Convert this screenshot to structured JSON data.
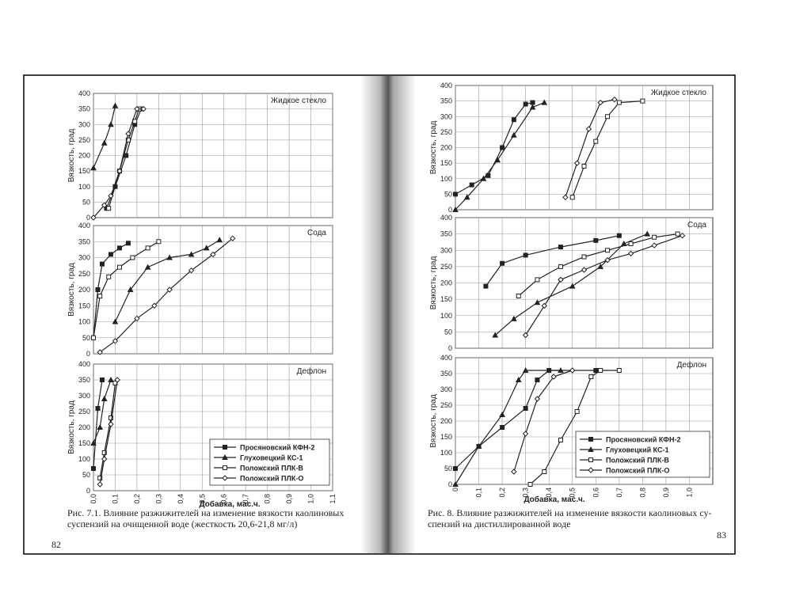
{
  "pages": [
    {
      "number": "82",
      "caption": [
        "Рис. 7.1. Влияние разжижителей на изменение вязкости каолиновых",
        "суспензий на очищенной воде (жесткость 20,6-21,8 мг/л)"
      ],
      "xlabel": "Добавка, мас.ч.",
      "xlim": [
        0,
        1.1
      ],
      "xticks": [
        {
          "value": 0,
          "label": "0,0"
        },
        {
          "value": 0.1,
          "label": "0,1"
        },
        {
          "value": 0.2,
          "label": "0,2"
        },
        {
          "value": 0.3,
          "label": "0,3"
        },
        {
          "value": 0.4,
          "label": "0,4"
        },
        {
          "value": 0.5,
          "label": "0,5"
        },
        {
          "value": 0.6,
          "label": "0,6"
        },
        {
          "value": 0.7,
          "label": "0,7"
        },
        {
          "value": 0.8,
          "label": "0,8"
        },
        {
          "value": 0.9,
          "label": "0,9"
        },
        {
          "value": 1.0,
          "label": "1,0"
        },
        {
          "value": 1.1,
          "label": "1,1"
        }
      ],
      "legend": [
        "Просяновский КФН-2",
        "Глуховецкий КС-1",
        "Положский ПЛК-В",
        "Положский ПЛК-О"
      ],
      "panels": [
        {
          "title": "Жидкое стекло",
          "ylabel": "Вязкость, град",
          "ylim": [
            0,
            400
          ],
          "yticks": [
            0,
            50,
            100,
            150,
            200,
            250,
            300,
            350,
            400
          ],
          "series": [
            {
              "x": [
                0.06,
                0.1,
                0.15,
                0.19,
                0.22
              ],
              "values": [
                30,
                100,
                200,
                300,
                350
              ]
            },
            {
              "x": [
                0,
                0.05,
                0.08,
                0.1
              ],
              "values": [
                160,
                240,
                300,
                360
              ]
            },
            {
              "x": [
                0.07,
                0.12,
                0.16,
                0.19,
                0.21
              ],
              "values": [
                30,
                150,
                250,
                310,
                350
              ]
            },
            {
              "x": [
                0,
                0.05,
                0.08,
                0.12,
                0.16,
                0.2,
                0.23
              ],
              "values": [
                0,
                40,
                70,
                150,
                270,
                350,
                350
              ]
            }
          ]
        },
        {
          "title": "Сода",
          "ylabel": "Вязкость, град",
          "ylim": [
            0,
            400
          ],
          "yticks": [
            0,
            50,
            100,
            150,
            200,
            250,
            300,
            350,
            400
          ],
          "series": [
            {
              "x": [
                0,
                0.02,
                0.04,
                0.08,
                0.12,
                0.16
              ],
              "values": [
                50,
                200,
                280,
                310,
                330,
                345
              ]
            },
            {
              "x": [
                0.1,
                0.17,
                0.25,
                0.35,
                0.45,
                0.52,
                0.58
              ],
              "values": [
                100,
                200,
                270,
                300,
                310,
                330,
                355
              ]
            },
            {
              "x": [
                0,
                0.03,
                0.07,
                0.12,
                0.18,
                0.25,
                0.3
              ],
              "values": [
                50,
                180,
                240,
                270,
                300,
                330,
                350
              ]
            },
            {
              "x": [
                0.03,
                0.1,
                0.2,
                0.28,
                0.35,
                0.45,
                0.55,
                0.64
              ],
              "values": [
                5,
                40,
                110,
                150,
                200,
                260,
                310,
                360
              ]
            }
          ]
        },
        {
          "title": "Дефлон",
          "ylabel": "Вязкость, град",
          "ylim": [
            0,
            400
          ],
          "yticks": [
            0,
            50,
            100,
            150,
            200,
            250,
            300,
            350,
            400
          ],
          "series": [
            {
              "x": [
                0,
                0.02,
                0.04
              ],
              "values": [
                70,
                260,
                350
              ]
            },
            {
              "x": [
                0,
                0.03,
                0.05,
                0.08
              ],
              "values": [
                150,
                200,
                290,
                350
              ]
            },
            {
              "x": [
                0.03,
                0.05,
                0.08,
                0.1
              ],
              "values": [
                40,
                120,
                230,
                340
              ]
            },
            {
              "x": [
                0.03,
                0.05,
                0.08,
                0.11
              ],
              "values": [
                20,
                100,
                210,
                350
              ]
            }
          ]
        }
      ]
    },
    {
      "number": "83",
      "caption": [
        "Рис. 8. Влияние разжижителей на изменение вязкости каолиновых су-",
        "спензий на дистиллированной воде"
      ],
      "xlabel": "Добавка, мас.ч.",
      "xlim": [
        0,
        1.1
      ],
      "xticks": [
        0,
        {
          "value": 0.1,
          "label": "0,1"
        },
        {
          "value": 0.2,
          "label": "0,2"
        },
        {
          "value": 0.3,
          "label": "0,3"
        },
        {
          "value": 0.4,
          "label": "0,4"
        },
        {
          "value": 0.5,
          "label": "0,5"
        },
        {
          "value": 0.6,
          "label": "0,6"
        },
        {
          "value": 0.7,
          "label": "0,7"
        },
        {
          "value": 0.8,
          "label": "0,8"
        },
        {
          "value": 0.9,
          "label": "0,9"
        },
        {
          "value": 1.0,
          "label": "1,0"
        }
      ],
      "legend": [
        "Просяновский КФН-2",
        "Глуховецкий КС-1",
        "Положский ПЛК-В",
        "Положский ПЛК-О"
      ],
      "panels": [
        {
          "title": "Жидкое стекло",
          "ylabel": "Вязкость, град",
          "ylim": [
            0,
            400
          ],
          "yticks": [
            0,
            50,
            100,
            150,
            200,
            250,
            300,
            350,
            400
          ],
          "series": [
            {
              "x": [
                0,
                0.07,
                0.14,
                0.2,
                0.25,
                0.3,
                0.33
              ],
              "values": [
                50,
                80,
                110,
                200,
                290,
                340,
                345
              ]
            },
            {
              "x": [
                0,
                0.05,
                0.12,
                0.18,
                0.25,
                0.33,
                0.38
              ],
              "values": [
                0,
                40,
                100,
                160,
                240,
                330,
                345
              ]
            },
            {
              "x": [
                0.5,
                0.55,
                0.6,
                0.65,
                0.7,
                0.8
              ],
              "values": [
                40,
                140,
                220,
                300,
                345,
                350
              ]
            },
            {
              "x": [
                0.47,
                0.52,
                0.57,
                0.62,
                0.68
              ],
              "values": [
                40,
                150,
                260,
                345,
                355
              ]
            }
          ]
        },
        {
          "title": "Сода",
          "ylabel": "Вязкость, град",
          "ylim": [
            0,
            400
          ],
          "yticks": [
            0,
            50,
            100,
            150,
            200,
            250,
            300,
            350,
            400
          ],
          "series": [
            {
              "x": [
                0.13,
                0.2,
                0.3,
                0.45,
                0.6,
                0.7
              ],
              "values": [
                190,
                260,
                285,
                310,
                330,
                345
              ]
            },
            {
              "x": [
                0.17,
                0.25,
                0.35,
                0.5,
                0.62,
                0.72,
                0.82
              ],
              "values": [
                40,
                90,
                140,
                190,
                250,
                320,
                350
              ]
            },
            {
              "x": [
                0.27,
                0.35,
                0.45,
                0.55,
                0.65,
                0.75,
                0.85,
                0.95
              ],
              "values": [
                160,
                210,
                250,
                280,
                300,
                320,
                340,
                350
              ]
            },
            {
              "x": [
                0.3,
                0.38,
                0.45,
                0.55,
                0.65,
                0.75,
                0.85,
                0.97
              ],
              "values": [
                40,
                130,
                210,
                240,
                270,
                290,
                315,
                345
              ]
            }
          ]
        },
        {
          "title": "Дефлон",
          "ylabel": "Вязкость, град",
          "ylim": [
            0,
            400
          ],
          "yticks": [
            0,
            50,
            100,
            150,
            200,
            250,
            300,
            350,
            400
          ],
          "series": [
            {
              "x": [
                0,
                0.1,
                0.2,
                0.3,
                0.35,
                0.4,
                0.6
              ],
              "values": [
                50,
                120,
                180,
                240,
                330,
                360,
                360
              ]
            },
            {
              "x": [
                0,
                0.1,
                0.2,
                0.27,
                0.3,
                0.45
              ],
              "values": [
                0,
                120,
                220,
                330,
                360,
                360
              ]
            },
            {
              "x": [
                0.32,
                0.38,
                0.45,
                0.52,
                0.58,
                0.62,
                0.7
              ],
              "values": [
                0,
                40,
                140,
                230,
                340,
                360,
                360
              ]
            },
            {
              "x": [
                0.25,
                0.3,
                0.35,
                0.42,
                0.5
              ],
              "values": [
                40,
                160,
                270,
                340,
                360
              ]
            }
          ]
        }
      ]
    }
  ]
}
